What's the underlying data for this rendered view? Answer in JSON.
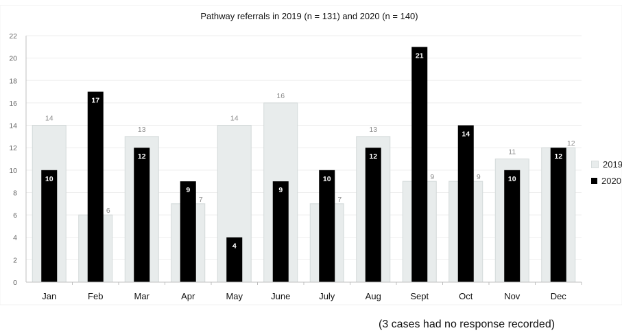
{
  "chart_data": {
    "type": "bar",
    "title": "Pathway referrals in 2019 (n = 131) and 2020 (n = 140)",
    "categories": [
      "Jan",
      "Feb",
      "Mar",
      "Apr",
      "May",
      "June",
      "July",
      "Aug",
      "Sept",
      "Oct",
      "Nov",
      "Dec"
    ],
    "series": [
      {
        "name": "2019",
        "color": "#e8ecec",
        "values": [
          14,
          6,
          13,
          7,
          14,
          16,
          7,
          13,
          9,
          9,
          11,
          12
        ]
      },
      {
        "name": "2020",
        "color": "#000000",
        "values": [
          10,
          17,
          12,
          9,
          4,
          9,
          10,
          12,
          21,
          14,
          10,
          12
        ]
      }
    ],
    "ylim": [
      0,
      22
    ],
    "yticks": [
      0,
      2,
      4,
      6,
      8,
      10,
      12,
      14,
      16,
      18,
      20,
      22
    ],
    "grid": true,
    "legend_position": "right"
  },
  "note": "(3 cases had no response recorded)"
}
